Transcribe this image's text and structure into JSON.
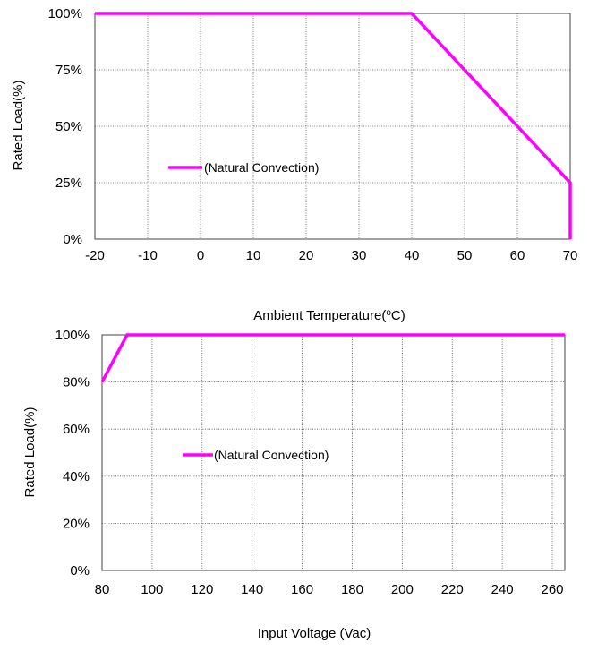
{
  "chart_data": [
    {
      "type": "line",
      "xlabel": "Ambient Temperature(",
      "xlabel_sup": "o",
      "xlabel_tail": "C)",
      "ylabel": "Rated Load(%)",
      "xlim": [
        -20,
        70
      ],
      "ylim": [
        0,
        100
      ],
      "x_ticks": [
        "-20",
        "-10",
        "0",
        "10",
        "20",
        "30",
        "40",
        "50",
        "60",
        "70"
      ],
      "y_ticks": [
        "0%",
        "25%",
        "50%",
        "75%",
        "100%"
      ],
      "grid": true,
      "legend_placement": "center-left",
      "series": [
        {
          "name": "(Natural Convection)",
          "color": "#ff00ff",
          "x": [
            -20,
            40,
            70,
            70
          ],
          "y": [
            100,
            100,
            25,
            0
          ]
        }
      ]
    },
    {
      "type": "line",
      "xlabel": "Input Voltage (Vac)",
      "ylabel": "Rated Load(%)",
      "xlim": [
        80,
        265
      ],
      "ylim": [
        0,
        100
      ],
      "x_ticks": [
        "80",
        "100",
        "120",
        "140",
        "160",
        "180",
        "200",
        "220",
        "240",
        "260"
      ],
      "y_ticks": [
        "0%",
        "20%",
        "40%",
        "60%",
        "80%",
        "100%"
      ],
      "grid": true,
      "legend_placement": "center-left",
      "series": [
        {
          "name": "(Natural Convection)",
          "color": "#ff00ff",
          "x": [
            80,
            90,
            265
          ],
          "y": [
            80,
            100,
            100
          ]
        }
      ]
    }
  ]
}
